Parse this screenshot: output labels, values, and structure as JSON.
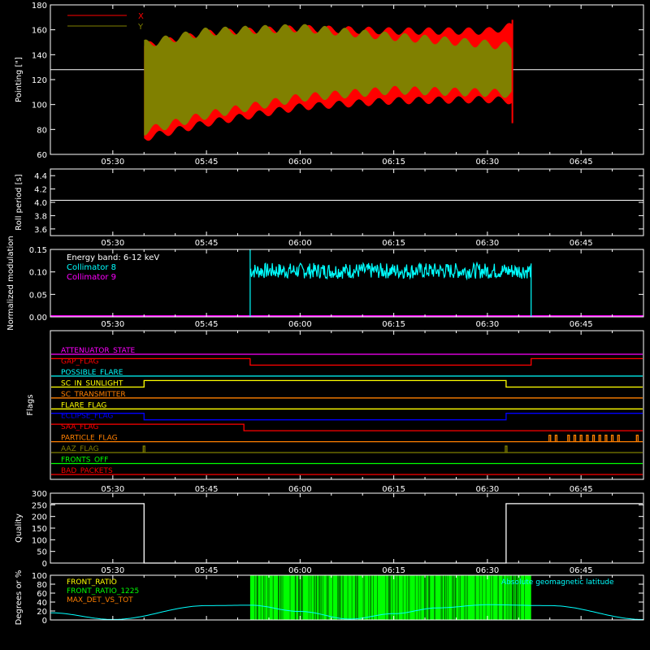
{
  "colors": {
    "background": "#000000",
    "axes": "#ffffff",
    "x_series": "#ff0000",
    "y_series": "#808000",
    "cyan": "#00ffff",
    "magenta": "#ff00ff",
    "green": "#00ff00",
    "orange": "#ff7f00",
    "yellow": "#ffff00",
    "blue": "#0000ff",
    "red": "#ff0000",
    "olive": "#808000"
  },
  "time_ticks": [
    "05:30",
    "05:45",
    "06:00",
    "06:15",
    "06:30",
    "06:45"
  ],
  "chart_data": [
    {
      "type": "area",
      "ylabel": "Pointing [\"]",
      "ylim": [
        60,
        180
      ],
      "yticks": [
        "60",
        "80",
        "100",
        "120",
        "140",
        "160",
        "180"
      ],
      "legend": [
        {
          "name": "X",
          "color": "#ff0000"
        },
        {
          "name": "Y",
          "color": "#808000"
        }
      ],
      "reference_line": 128,
      "data_start": "05:35",
      "data_end": "06:34",
      "series": [
        {
          "name": "X",
          "x": [
            "05:35",
            "05:45",
            "06:00",
            "06:15",
            "06:30",
            "06:34"
          ],
          "lower": [
            70,
            82,
            95,
            100,
            101,
            100
          ],
          "upper": [
            150,
            160,
            164,
            162,
            162,
            166
          ]
        },
        {
          "name": "Y",
          "x": [
            "05:35",
            "05:45",
            "06:00",
            "06:15",
            "06:30",
            "06:34"
          ],
          "lower": [
            75,
            88,
            102,
            108,
            106,
            105
          ],
          "upper": [
            152,
            162,
            165,
            158,
            152,
            150
          ]
        }
      ]
    },
    {
      "type": "line",
      "ylabel": "Roll period [s]",
      "ylim": [
        3.5,
        4.5
      ],
      "yticks": [
        "3.6",
        "3.8",
        "4.0",
        "4.2",
        "4.4"
      ],
      "series": [
        {
          "x": [
            "05:20",
            "06:55"
          ],
          "values": [
            4.03,
            4.03
          ]
        }
      ]
    },
    {
      "type": "line",
      "ylabel": "Normalized modulation",
      "ylim": [
        0,
        0.15
      ],
      "yticks": [
        "0.00",
        "0.05",
        "0.10",
        "0.15"
      ],
      "annotations": [
        "Energy band: 6-12 keV",
        "Collimator 8",
        "Collimator 9"
      ],
      "series": [
        {
          "name": "Collimator 8",
          "x_start": "05:52",
          "x_end": "06:37",
          "typical_low": 0.085,
          "typical_high": 0.12
        },
        {
          "name": "Collimator 9",
          "x": [
            "05:20",
            "06:55"
          ],
          "values": [
            0,
            0
          ]
        }
      ]
    },
    {
      "type": "line",
      "ylabel": "Flags",
      "flags": [
        {
          "label": "ATTENUATOR_STATE",
          "color": "#ff00ff",
          "segments": [
            [
              "05:20",
              "06:55",
              0
            ]
          ]
        },
        {
          "label": "GAP_FLAG",
          "color": "#ff0000",
          "segments": [
            [
              "05:20",
              "05:52",
              1
            ],
            [
              "05:52",
              "06:37",
              0
            ],
            [
              "06:37",
              "06:55",
              1
            ]
          ]
        },
        {
          "label": "POSSIBLE_FLARE",
          "color": "#00ffff",
          "segments": [
            [
              "05:20",
              "06:55",
              0
            ]
          ]
        },
        {
          "label": "SC_IN_SUNLIGHT",
          "color": "#ffff00",
          "segments": [
            [
              "05:20",
              "05:35",
              0
            ],
            [
              "05:35",
              "06:33",
              1
            ],
            [
              "06:33",
              "06:55",
              0
            ]
          ]
        },
        {
          "label": "SC_TRANSMITTER",
          "color": "#ff7f00",
          "segments": [
            [
              "05:20",
              "06:55",
              0
            ]
          ]
        },
        {
          "label": "FLARE_FLAG",
          "color": "#ffff00",
          "segments": [
            [
              "05:20",
              "06:55",
              0
            ]
          ]
        },
        {
          "label": "ECLIPSE_FLAG",
          "color": "#0000ff",
          "segments": [
            [
              "05:20",
              "05:35",
              1
            ],
            [
              "05:35",
              "06:33",
              0
            ],
            [
              "06:33",
              "06:55",
              1
            ]
          ]
        },
        {
          "label": "SAA_FLAG",
          "color": "#ff0000",
          "segments": [
            [
              "05:20",
              "05:51",
              1
            ],
            [
              "05:51",
              "06:55",
              0
            ]
          ]
        },
        {
          "label": "PARTICLE_FLAG",
          "color": "#ff7f00",
          "segments": [
            [
              "05:20",
              "06:55",
              0
            ]
          ],
          "spikes": [
            "06:40",
            "06:41",
            "06:43",
            "06:44",
            "06:45",
            "06:46",
            "06:47",
            "06:48",
            "06:49",
            "06:50",
            "06:51",
            "06:54"
          ]
        },
        {
          "label": "AAZ_FLAG",
          "color": "#808000",
          "segments": [
            [
              "05:20",
              "06:55",
              0
            ]
          ],
          "spikes": [
            "05:35",
            "06:33"
          ]
        },
        {
          "label": "FRONTS_OFF",
          "color": "#00ff00",
          "segments": [
            [
              "05:20",
              "06:55",
              0
            ]
          ]
        },
        {
          "label": "BAD_PACKETS",
          "color": "#ff0000",
          "segments": [
            [
              "05:20",
              "06:55",
              0
            ]
          ]
        }
      ]
    },
    {
      "type": "line",
      "ylabel": "Quality",
      "ylim": [
        0,
        300
      ],
      "yticks": [
        "0",
        "50",
        "100",
        "150",
        "200",
        "250",
        "300"
      ],
      "series": [
        {
          "x": [
            "05:20",
            "05:35",
            "05:35",
            "06:33",
            "06:33",
            "06:55"
          ],
          "values": [
            255,
            255,
            0,
            0,
            255,
            255
          ]
        }
      ]
    },
    {
      "type": "line",
      "ylabel": "Degrees or %",
      "ylim": [
        0,
        100
      ],
      "yticks": [
        "0",
        "20",
        "40",
        "60",
        "80",
        "100"
      ],
      "legend": [
        "FRONT_RATIO",
        "FRONT_RATIO_1225",
        "MAX_DET_VS_TOT"
      ],
      "right_label": "Absolute geomagnetic latitude",
      "series": [
        {
          "name": "FRONT_RATIO_1225",
          "x_start": "05:52",
          "x_end": "06:37",
          "value": 100
        },
        {
          "name": "Absolute geomagnetic latitude",
          "x": [
            "05:20",
            "05:30",
            "05:45",
            "05:52",
            "06:00",
            "06:08",
            "06:15",
            "06:22",
            "06:30",
            "06:40",
            "06:55"
          ],
          "values": [
            16,
            1,
            32,
            33,
            19,
            2,
            14,
            27,
            34,
            32,
            1
          ]
        }
      ]
    }
  ]
}
